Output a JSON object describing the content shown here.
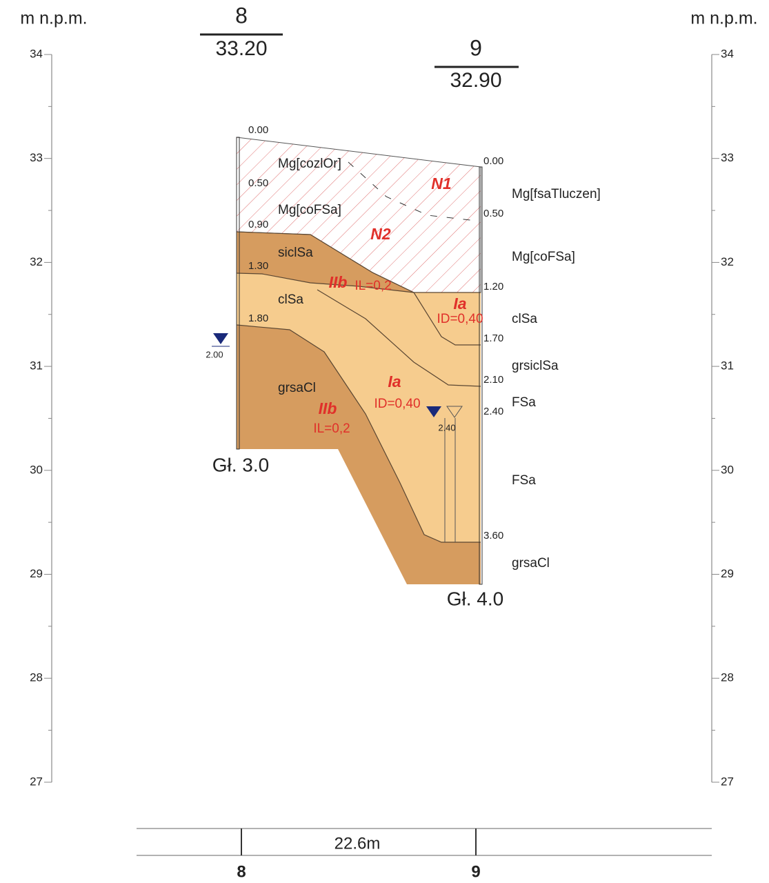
{
  "axis": {
    "title_left": "m n.p.m.",
    "title_right": "m n.p.m.",
    "ticks": [
      "34",
      "33",
      "32",
      "31",
      "30",
      "29",
      "28",
      "27"
    ]
  },
  "boreholes": [
    {
      "name": "8",
      "elevation": "33.20",
      "depths": [
        "0.00",
        "0.50",
        "0.90",
        "1.30",
        "1.80"
      ],
      "water": "2.00",
      "bottom": "Gł. 3.0"
    },
    {
      "name": "9",
      "elevation": "32.90",
      "depths": [
        "0.00",
        "0.50",
        "1.20",
        "1.70",
        "2.10",
        "2.40",
        "3.60"
      ],
      "water": "2.40",
      "bottom": "Gł. 4.0"
    }
  ],
  "soils_left": [
    "Mg[cozlOr]",
    "Mg[coFSa]",
    "siclSa",
    "clSa",
    "grsaCl"
  ],
  "soils_right": [
    "Mg[fsaTluczen]",
    "Mg[coFSa]",
    "clSa",
    "grsiclSa",
    "FSa",
    "FSa",
    "grsaCl"
  ],
  "zones": [
    {
      "name": "N1"
    },
    {
      "name": "N2"
    },
    {
      "name": "IIb",
      "param": "IL=0,2"
    },
    {
      "name": "Ia",
      "param": "ID=0,40"
    },
    {
      "name": "Ia",
      "param": "ID=0,40"
    },
    {
      "name": "IIb",
      "param": "IL=0,2"
    }
  ],
  "scale": {
    "distance": "22.6m",
    "left": "8",
    "right": "9"
  }
}
